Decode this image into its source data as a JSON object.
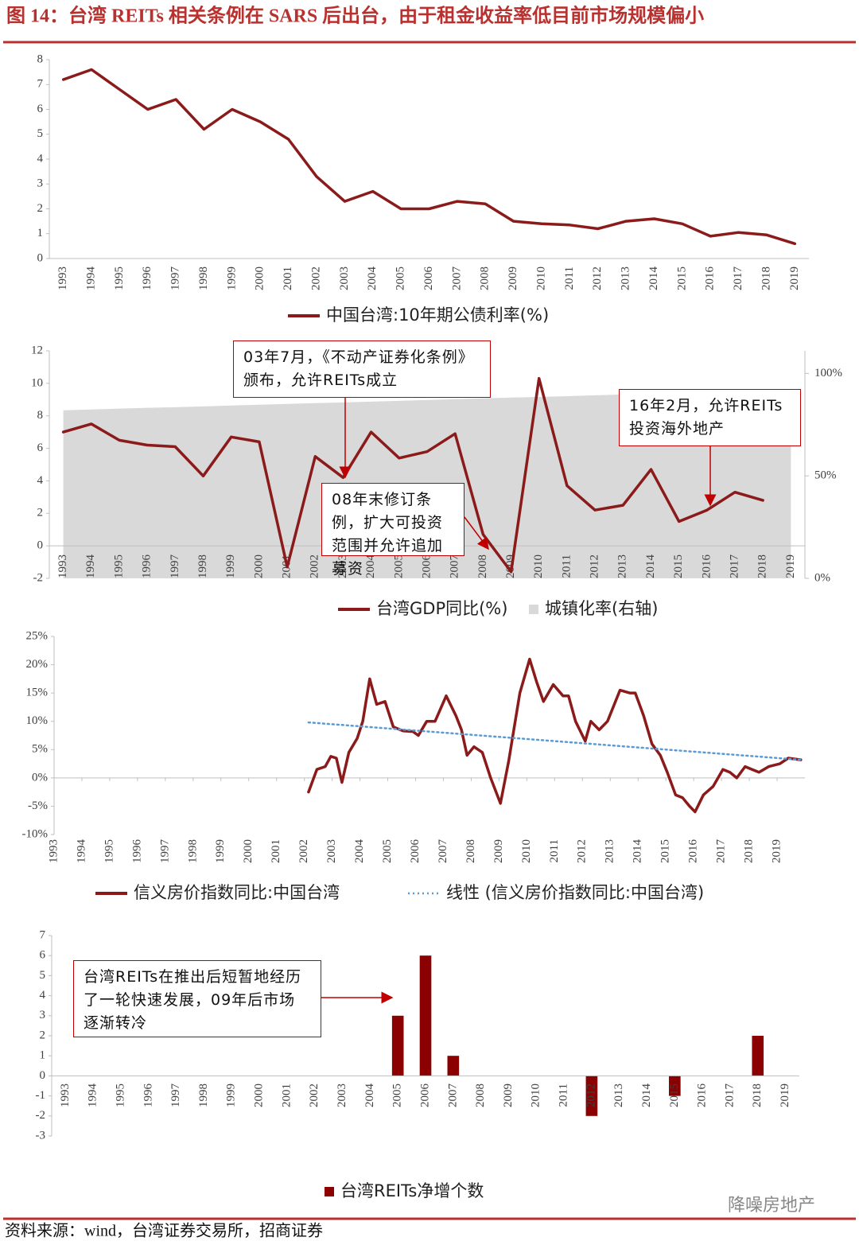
{
  "header": {
    "title": "图 14：台湾 REITs 相关条例在 SARS 后出台，由于租金收益率低目前市场规模偏小"
  },
  "footer": {
    "source": "资料来源：wind，台湾证券交易所，招商证券",
    "watermark": "降噪房地产"
  },
  "chart_data": [
    {
      "type": "line",
      "categories": [
        "1993",
        "1994",
        "1995",
        "1996",
        "1997",
        "1998",
        "1999",
        "2000",
        "2001",
        "2002",
        "2003",
        "2004",
        "2005",
        "2006",
        "2007",
        "2008",
        "2009",
        "2010",
        "2011",
        "2012",
        "2013",
        "2014",
        "2015",
        "2016",
        "2017",
        "2018",
        "2019"
      ],
      "series": [
        {
          "name": "中国台湾:10年期公债利率(%)",
          "color": "#8b1a1a",
          "values": [
            7.2,
            7.6,
            6.8,
            6.0,
            6.4,
            5.2,
            6.0,
            5.5,
            4.8,
            3.3,
            2.3,
            2.7,
            2.0,
            2.0,
            2.3,
            2.2,
            1.5,
            1.4,
            1.35,
            1.2,
            1.5,
            1.6,
            1.4,
            0.9,
            1.05,
            0.95,
            0.6
          ]
        }
      ],
      "ylim": [
        0,
        8
      ],
      "yticks": [
        0,
        1,
        2,
        3,
        4,
        5,
        6,
        7,
        8
      ]
    },
    {
      "type": "line",
      "categories": [
        "1993",
        "1994",
        "1995",
        "1996",
        "1997",
        "1998",
        "1999",
        "2000",
        "2001",
        "2002",
        "2003",
        "2004",
        "2005",
        "2006",
        "2007",
        "2008",
        "2009",
        "2010",
        "2011",
        "2012",
        "2013",
        "2014",
        "2015",
        "2016",
        "2017",
        "2018",
        "2019"
      ],
      "series": [
        {
          "name": "台湾GDP同比(%)",
          "color": "#8b1a1a",
          "values": [
            7.0,
            7.5,
            6.5,
            6.2,
            6.1,
            4.3,
            6.7,
            6.4,
            -1.3,
            5.5,
            4.2,
            7.0,
            5.4,
            5.8,
            6.9,
            0.7,
            -1.6,
            10.3,
            3.7,
            2.2,
            2.5,
            4.7,
            1.5,
            2.2,
            3.3,
            2.8,
            null
          ]
        },
        {
          "name": "城镇化率(右轴)",
          "type": "area",
          "axis": "y2",
          "color": "#d9d9d9",
          "values": [
            82.0,
            82.4,
            82.8,
            83.2,
            83.5,
            83.9,
            84.3,
            84.7,
            85.1,
            85.5,
            85.8,
            86.2,
            86.6,
            87.0,
            87.4,
            87.8,
            88.2,
            88.5,
            88.9,
            89.3,
            89.7,
            90.1,
            90.5,
            90.8,
            91.2,
            91.6,
            92.0
          ]
        }
      ],
      "ylim": [
        -2,
        12
      ],
      "yticks": [
        -2,
        0,
        2,
        4,
        6,
        8,
        10,
        12
      ],
      "y2lim": [
        0,
        111
      ],
      "y2ticks": [
        {
          "value": 0,
          "label": "0%"
        },
        {
          "value": 50,
          "label": "50%"
        },
        {
          "value": 100,
          "label": "100%"
        }
      ],
      "annotations": [
        {
          "text": "03年7月，《不动产证券化条例》颁布，允许REITs成立"
        },
        {
          "text": "16年2月，允许REITs投资海外地产"
        },
        {
          "text": "08年末修订条例，扩大可投资范围并允许追加募资"
        }
      ]
    },
    {
      "type": "line",
      "series": [
        {
          "name": "信义房价指数同比:中国台湾",
          "color": "#8b1a1a",
          "x": [
            2002.15,
            2002.45,
            2002.75,
            2002.95,
            2003.15,
            2003.35,
            2003.6,
            2003.9,
            2004.1,
            2004.35,
            2004.6,
            2004.9,
            2005.2,
            2005.55,
            2005.9,
            2006.1,
            2006.4,
            2006.7,
            2007.1,
            2007.45,
            2007.65,
            2007.85,
            2008.1,
            2008.4,
            2008.7,
            2009.05,
            2009.35,
            2009.75,
            2010.1,
            2010.35,
            2010.6,
            2010.95,
            2011.3,
            2011.5,
            2011.75,
            2012.1,
            2012.3,
            2012.6,
            2012.9,
            2013.35,
            2013.7,
            2013.9,
            2014.2,
            2014.5,
            2014.8,
            2015.05,
            2015.35,
            2015.6,
            2015.85,
            2016.05,
            2016.35,
            2016.7,
            2017.05,
            2017.3,
            2017.55,
            2017.85,
            2018.1,
            2018.35,
            2018.7,
            2019.1,
            2019.4,
            2019.85
          ],
          "values": [
            -2.5,
            1.5,
            2.0,
            3.8,
            3.5,
            -0.8,
            4.5,
            7.0,
            10.0,
            17.5,
            13.0,
            13.5,
            9.0,
            8.3,
            8.2,
            7.5,
            10.0,
            10.0,
            14.5,
            11.0,
            8.5,
            4.0,
            5.5,
            4.5,
            0.0,
            -4.5,
            3.0,
            15.0,
            21.0,
            17.0,
            13.5,
            16.5,
            14.5,
            14.5,
            10.0,
            6.5,
            10.0,
            8.5,
            10.0,
            15.5,
            15.0,
            15.0,
            11.0,
            6.0,
            4.0,
            1.0,
            -3.0,
            -3.5,
            -5.0,
            -6.0,
            -3.0,
            -1.5,
            1.5,
            1.0,
            0.0,
            2.0,
            1.5,
            1.0,
            2.0,
            2.5,
            3.5,
            3.2
          ]
        },
        {
          "name": "线性 (信义房价指数同比:中国台湾)",
          "color": "#5b9bd5",
          "style": "dotted",
          "x": [
            2002.15,
            2019.85
          ],
          "values": [
            9.8,
            3.2
          ]
        }
      ],
      "xlim": [
        1993,
        2020
      ],
      "xticks": [
        1993,
        1994,
        1995,
        1996,
        1997,
        1998,
        1999,
        2000,
        2001,
        2002,
        2003,
        2004,
        2005,
        2006,
        2007,
        2008,
        2009,
        2010,
        2011,
        2012,
        2013,
        2014,
        2015,
        2016,
        2017,
        2018,
        2019
      ],
      "ylim": [
        -10,
        25
      ],
      "yticks": [
        {
          "value": -10,
          "label": "-10%"
        },
        {
          "value": -5,
          "label": "-5%"
        },
        {
          "value": 0,
          "label": "0%"
        },
        {
          "value": 5,
          "label": "5%"
        },
        {
          "value": 10,
          "label": "10%"
        },
        {
          "value": 15,
          "label": "15%"
        },
        {
          "value": 20,
          "label": "20%"
        },
        {
          "value": 25,
          "label": "25%"
        }
      ]
    },
    {
      "type": "bar",
      "categories": [
        "1993",
        "1994",
        "1995",
        "1996",
        "1997",
        "1998",
        "1999",
        "2000",
        "2001",
        "2002",
        "2003",
        "2004",
        "2005",
        "2006",
        "2007",
        "2008",
        "2009",
        "2010",
        "2011",
        "2012",
        "2013",
        "2014",
        "2015",
        "2016",
        "2017",
        "2018",
        "2019"
      ],
      "series": [
        {
          "name": "台湾REITs净增个数",
          "color": "#8b0000",
          "values": [
            0,
            0,
            0,
            0,
            0,
            0,
            0,
            0,
            0,
            0,
            0,
            0,
            3,
            6,
            1,
            0,
            0,
            0,
            0,
            -2,
            0,
            0,
            -1,
            0,
            0,
            2,
            0
          ]
        }
      ],
      "ylim": [
        -3,
        7
      ],
      "yticks": [
        -3,
        -2,
        -1,
        0,
        1,
        2,
        3,
        4,
        5,
        6,
        7
      ],
      "annotations": [
        {
          "text": "台湾REITs在推出后短暂地经历了一轮快速发展，09年后市场逐渐转冷"
        }
      ]
    }
  ]
}
